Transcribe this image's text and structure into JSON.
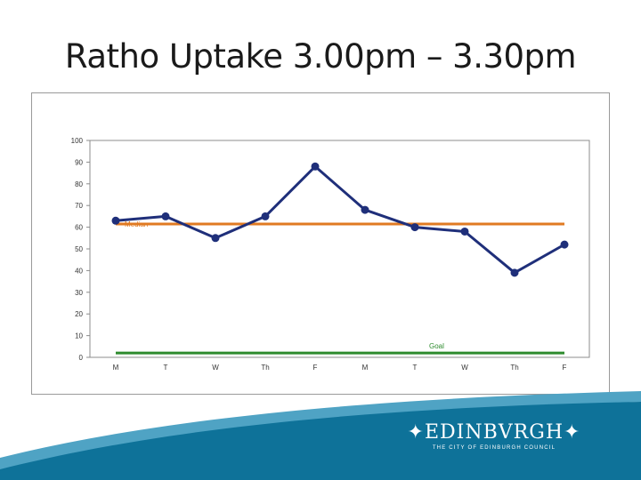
{
  "slide": {
    "title": "Ratho Uptake 3.00pm – 3.30pm"
  },
  "logo": {
    "name": "EDINBVRGH",
    "tagline": "THE CITY OF EDINBURGH COUNCIL"
  },
  "colors": {
    "series": "#1f2f7a",
    "median": "#e07a22",
    "goal": "#2e8b2e",
    "footer_wave": "#0e7299",
    "footer_wave_light": "#4fa3c4"
  },
  "chart_data": {
    "type": "line",
    "title": "",
    "xlabel": "",
    "ylabel": "",
    "categories": [
      "M",
      "T",
      "W",
      "Th",
      "F",
      "M",
      "T",
      "W",
      "Th",
      "F"
    ],
    "series": [
      {
        "values": [
          63,
          65,
          55,
          65,
          88,
          68,
          60,
          58,
          39,
          52
        ]
      }
    ],
    "reference_lines": [
      {
        "label": "Median",
        "value": 61.5,
        "color": "#e07a22"
      },
      {
        "label": "Goal",
        "value": 2,
        "color": "#2e8b2e"
      }
    ],
    "ylim": [
      0,
      100
    ],
    "yticks": [
      0,
      10,
      20,
      30,
      40,
      50,
      60,
      70,
      80,
      90,
      100
    ],
    "grid": false,
    "legend": "none"
  }
}
